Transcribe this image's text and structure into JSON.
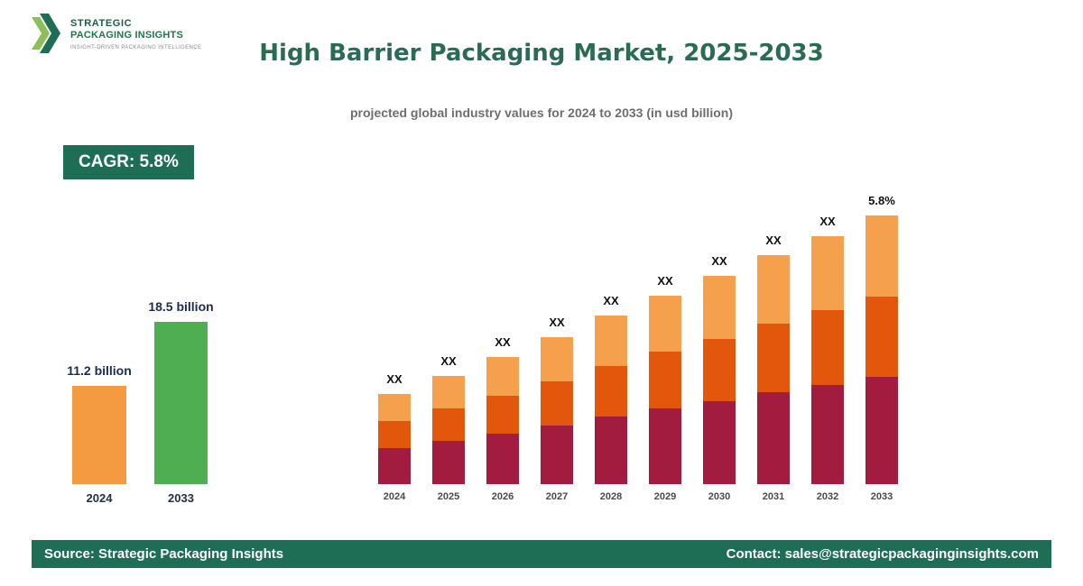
{
  "logo": {
    "line1": "STRATEGIC",
    "line2": "PACKAGING INSIGHTS",
    "tagline": "INSIGHT-DRIVEN PACKAGING INTELLIGENCE"
  },
  "header": {
    "title": "High Barrier Packaging Market, 2025-2033",
    "subtitle": "projected global industry values for 2024 to 2033 (in usd billion)"
  },
  "cagr_badge": "CAGR: 5.8%",
  "colors": {
    "brand_green": "#1e6e55",
    "title_green": "#2b6a53",
    "bar_orange": "#f49b42",
    "bar_green": "#4eae51",
    "stack_bottom_maroon": "#a21c40",
    "stack_middle_orange": "#e2570b",
    "stack_top_light_orange": "#f5a04c"
  },
  "chart_data": [
    {
      "type": "bar",
      "name": "market-size-comparison",
      "categories": [
        "2024",
        "2033"
      ],
      "values": [
        11.2,
        18.5
      ],
      "value_labels": [
        "11.2 billion",
        "18.5 billion"
      ],
      "bar_colors": [
        "#f49b42",
        "#4eae51"
      ],
      "ylim": [
        0,
        20
      ],
      "grid": false,
      "legend": "none"
    },
    {
      "type": "bar",
      "subtype": "stacked",
      "name": "projected-values-by-year",
      "note": "segment values are relative heights; actual values shown as XX placeholders",
      "categories": [
        "2024",
        "2025",
        "2026",
        "2027",
        "2028",
        "2029",
        "2030",
        "2031",
        "2032",
        "2033"
      ],
      "series": [
        {
          "name": "bottom",
          "color": "#a21c40",
          "values": [
            40,
            48,
            56,
            65,
            75,
            84,
            92,
            102,
            110,
            119
          ]
        },
        {
          "name": "middle",
          "color": "#e2570b",
          "values": [
            30,
            36,
            42,
            49,
            56,
            63,
            69,
            76,
            83,
            89
          ]
        },
        {
          "name": "top",
          "color": "#f5a04c",
          "values": [
            30,
            36,
            43,
            49,
            56,
            62,
            70,
            76,
            82,
            90
          ]
        }
      ],
      "bar_labels": [
        "XX",
        "XX",
        "XX",
        "XX",
        "XX",
        "XX",
        "XX",
        "XX",
        "XX",
        "5.8%"
      ],
      "grid": false,
      "legend": "none"
    }
  ],
  "footer": {
    "source": "Source: Strategic Packaging Insights",
    "contact": "Contact: sales@strategicpackaginginsights.com"
  }
}
